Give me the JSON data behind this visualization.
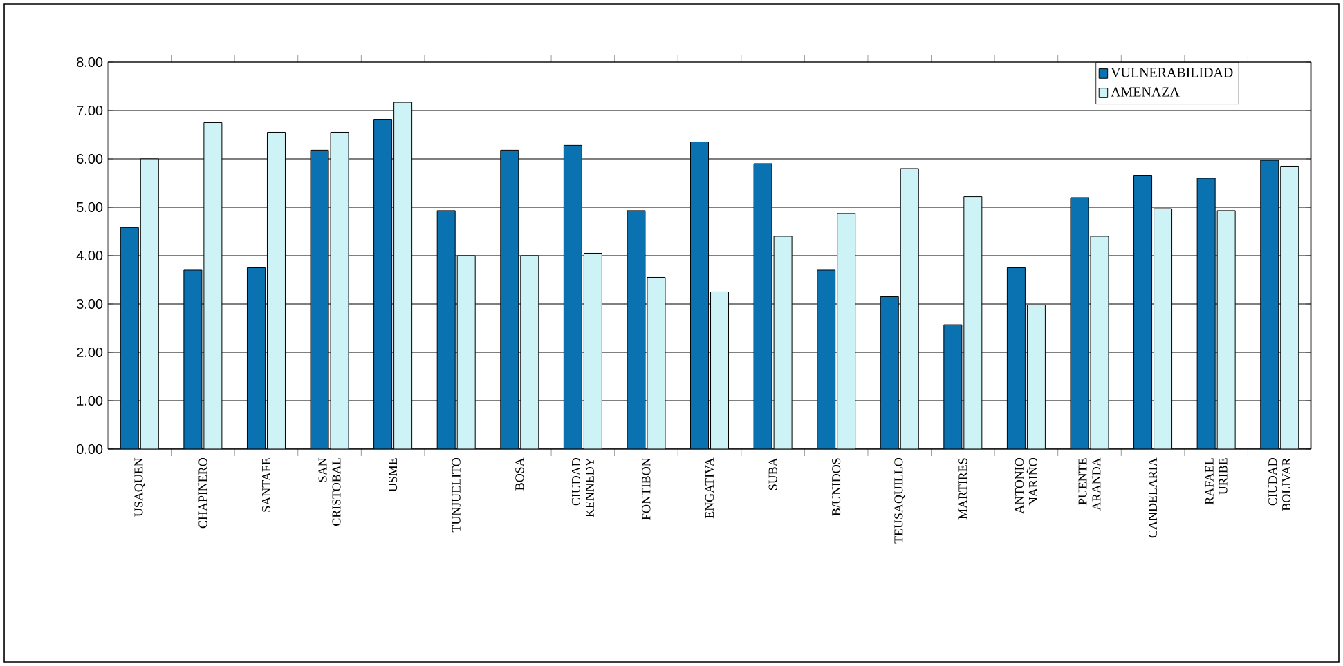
{
  "chart_data": {
    "type": "bar",
    "categories": [
      "USAQUEN",
      "CHAPINERO",
      "SANTAFE",
      "SAN CRISTOBAL",
      "USME",
      "TUNJUELITO",
      "BOSA",
      "CIUDAD KENNEDY",
      "FONTIBON",
      "ENGATIVA",
      "SUBA",
      "B/UNIDOS",
      "TEUSAQUILLO",
      "MARTIRES",
      "ANTONIO NARIÑO",
      "PUENTE ARANDA",
      "CANDELARIA",
      "RAFAEL URIBE",
      "CIUDAD BOLIVAR"
    ],
    "series": [
      {
        "name": "VULNERABILIDAD",
        "color": "#0a72b0",
        "values": [
          4.58,
          3.7,
          3.75,
          6.18,
          6.82,
          4.93,
          6.18,
          6.28,
          4.93,
          6.35,
          5.9,
          3.7,
          3.15,
          2.57,
          3.75,
          5.2,
          5.65,
          5.6,
          5.97
        ]
      },
      {
        "name": "AMENAZA",
        "color": "#cdf3f7",
        "values": [
          6.0,
          6.75,
          6.55,
          6.55,
          7.17,
          4.0,
          4.0,
          4.05,
          3.55,
          3.25,
          4.4,
          4.87,
          5.8,
          5.22,
          2.98,
          4.4,
          4.97,
          4.93,
          5.85
        ]
      }
    ],
    "ylim": [
      0,
      8
    ],
    "yticks": [
      {
        "value": 0,
        "label": "0.00"
      },
      {
        "value": 1,
        "label": "1.00"
      },
      {
        "value": 2,
        "label": "2.00"
      },
      {
        "value": 3,
        "label": "3.00"
      },
      {
        "value": 4,
        "label": "4.00"
      },
      {
        "value": 5,
        "label": "5.00"
      },
      {
        "value": 6,
        "label": "6.00"
      },
      {
        "value": 7,
        "label": "7.00"
      },
      {
        "value": 8,
        "label": "8.00"
      }
    ],
    "grid": "y",
    "legend": "top right"
  }
}
